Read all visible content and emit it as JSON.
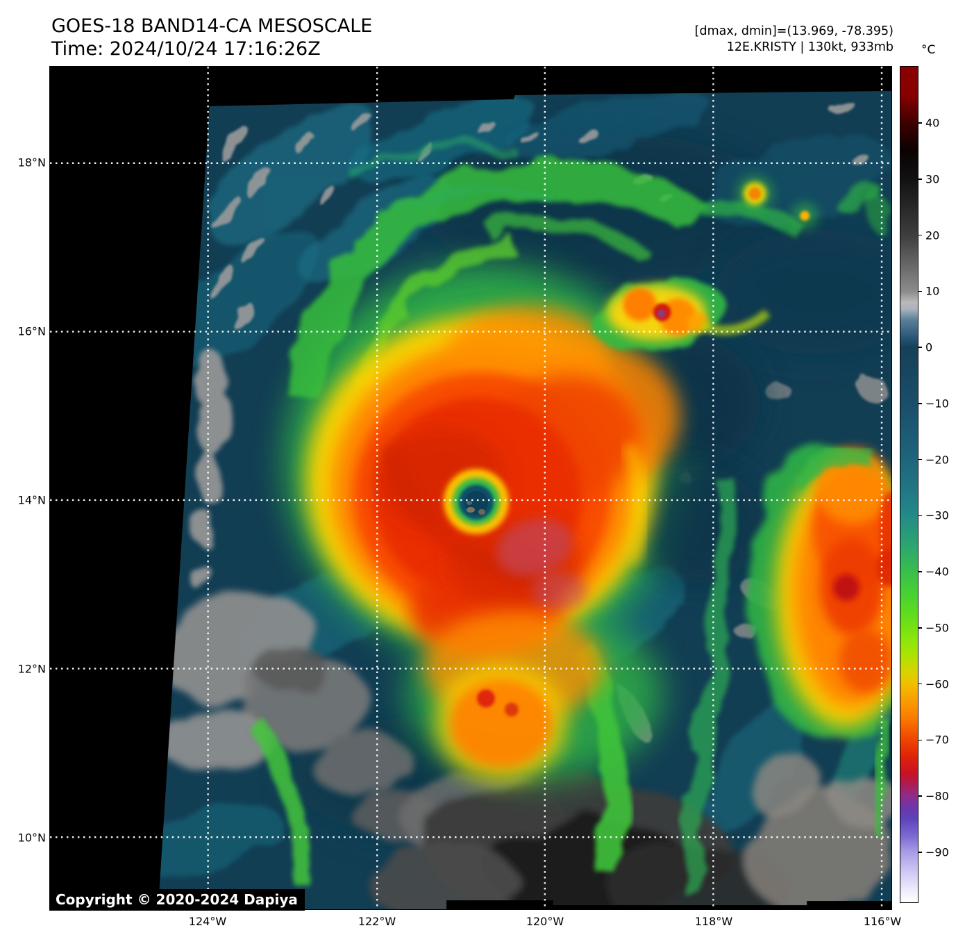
{
  "header": {
    "title": "GOES-18 BAND14-CA MESOSCALE",
    "time_line": "Time: 2024/10/24 17:16:26Z"
  },
  "annotations": {
    "range_line": "[dmax, dmin]=(13.969, -78.395)",
    "storm_line": "12E.KRISTY | 130kt, 933mb",
    "dmax_c": 13.969,
    "dmin_c": -78.395,
    "storm_id": "12E",
    "storm_name": "KRISTY",
    "intensity": "130kt",
    "pressure": "933mb"
  },
  "axes": {
    "lat_labels": [
      "18°N",
      "16°N",
      "14°N",
      "12°N",
      "10°N"
    ],
    "lon_labels": [
      "124°W",
      "122°W",
      "120°W",
      "118°W",
      "116°W"
    ]
  },
  "colorbar": {
    "unit_label": "°C",
    "tick_labels": [
      "40",
      "30",
      "20",
      "10",
      "0",
      "−10",
      "−20",
      "−30",
      "−40",
      "−50",
      "−60",
      "−70",
      "−80",
      "−90"
    ],
    "gradient_stops": [
      {
        "p": 0,
        "c": "#8B0000"
      },
      {
        "p": 3.5,
        "c": "#860000"
      },
      {
        "p": 7,
        "c": "#3A0000"
      },
      {
        "p": 10,
        "c": "#0B0202"
      },
      {
        "p": 13.4,
        "c": "#111111"
      },
      {
        "p": 20.2,
        "c": "#3E3E3E"
      },
      {
        "p": 26.9,
        "c": "#8C8C8C"
      },
      {
        "p": 28.2,
        "c": "#B9B9B9"
      },
      {
        "p": 29.0,
        "c": "#AAB2BD"
      },
      {
        "p": 30.3,
        "c": "#5B8098"
      },
      {
        "p": 32.3,
        "c": "#2B5878"
      },
      {
        "p": 33.6,
        "c": "#174058"
      },
      {
        "p": 40.3,
        "c": "#1A4E6A"
      },
      {
        "p": 47.0,
        "c": "#1F657C"
      },
      {
        "p": 50.4,
        "c": "#217584"
      },
      {
        "p": 53.7,
        "c": "#238A88"
      },
      {
        "p": 57.5,
        "c": "#2DA76E"
      },
      {
        "p": 60.4,
        "c": "#38BF4B"
      },
      {
        "p": 63.1,
        "c": "#49D132"
      },
      {
        "p": 65.8,
        "c": "#63DD1C"
      },
      {
        "p": 68.5,
        "c": "#8BE60C"
      },
      {
        "p": 70.5,
        "c": "#AFE204"
      },
      {
        "p": 72.5,
        "c": "#D8D300"
      },
      {
        "p": 73.8,
        "c": "#F0C000"
      },
      {
        "p": 75.9,
        "c": "#F99D00"
      },
      {
        "p": 77.9,
        "c": "#FB7C00"
      },
      {
        "p": 80.5,
        "c": "#F04500"
      },
      {
        "p": 82.6,
        "c": "#DF2308"
      },
      {
        "p": 84.6,
        "c": "#C61325"
      },
      {
        "p": 85.9,
        "c": "#AD1B55"
      },
      {
        "p": 87.3,
        "c": "#8F2D8C"
      },
      {
        "p": 88.6,
        "c": "#6E35AB"
      },
      {
        "p": 90.0,
        "c": "#5E42BB"
      },
      {
        "p": 92.0,
        "c": "#7B68D2"
      },
      {
        "p": 94.0,
        "c": "#A99CE6"
      },
      {
        "p": 96.6,
        "c": "#D3CDF4"
      },
      {
        "p": 98.6,
        "c": "#EFEDFB"
      },
      {
        "p": 100,
        "c": "#FFFFFF"
      }
    ]
  },
  "footer": {
    "copyright": "Copyright © 2020-2024 Dapiya"
  }
}
